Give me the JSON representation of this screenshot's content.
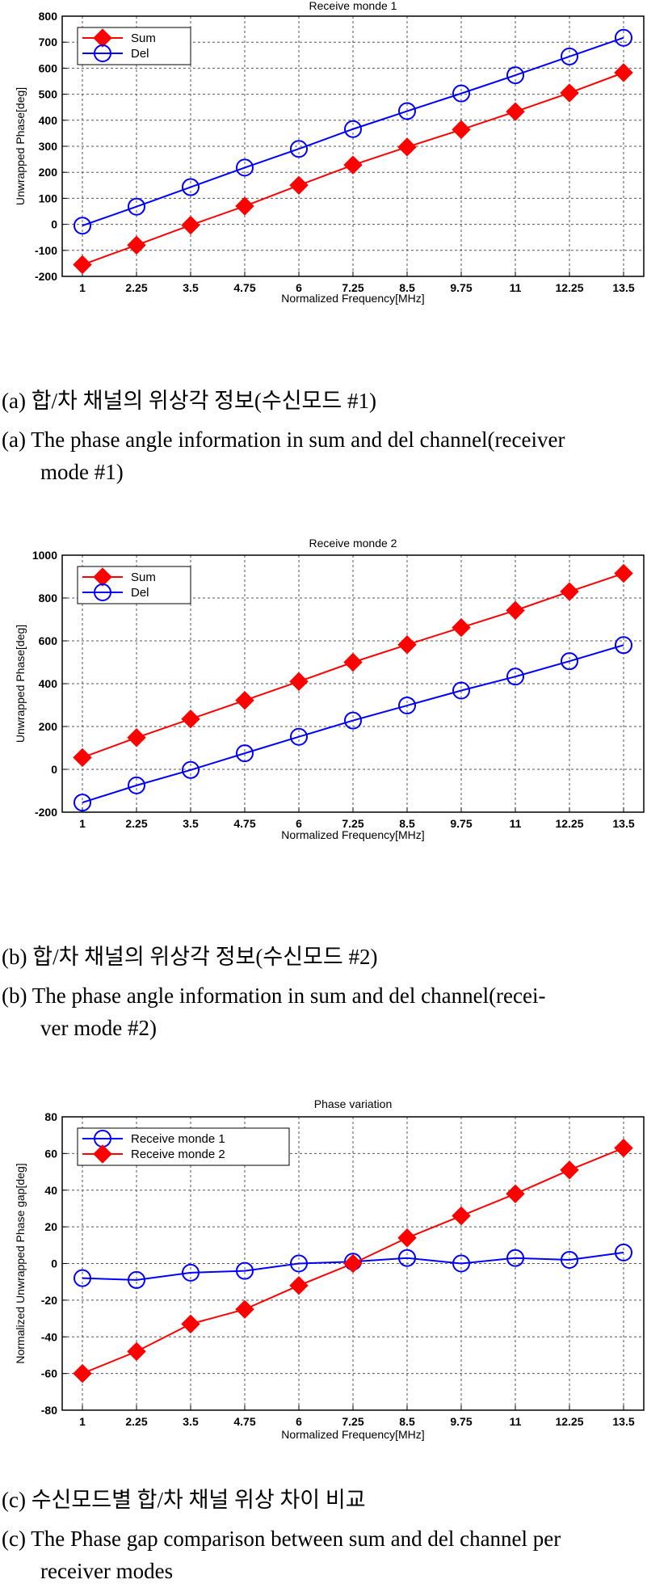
{
  "chart_data": [
    {
      "type": "line",
      "title": "Receive monde 1",
      "xlabel": "Normalized Frequency[MHz]",
      "ylabel": "Unwrapped Phase[deg]",
      "categories": [
        "1",
        "2.25",
        "3.5",
        "4.75",
        "6",
        "7.25",
        "8.5",
        "9.75",
        "11",
        "12.25",
        "13.5"
      ],
      "ylim": [
        -200,
        800
      ],
      "yticks": [
        -200,
        -100,
        0,
        100,
        200,
        300,
        400,
        500,
        600,
        700,
        800
      ],
      "grid": true,
      "legend": "top-left",
      "series": [
        {
          "name": "Sum",
          "color": "#ff0000",
          "marker": "diamond",
          "values": [
            -155,
            -80,
            -3,
            70,
            150,
            228,
            297,
            364,
            433,
            505,
            583
          ]
        },
        {
          "name": "Del",
          "color": "#0000ff",
          "marker": "circle",
          "values": [
            -5,
            68,
            143,
            218,
            290,
            366,
            435,
            503,
            573,
            645,
            717
          ]
        }
      ]
    },
    {
      "type": "line",
      "title": "Receive monde 2",
      "xlabel": "Normalized Frequency[MHz]",
      "ylabel": "Unwrapped Phase[deg]",
      "categories": [
        "1",
        "2.25",
        "3.5",
        "4.75",
        "6",
        "7.25",
        "8.5",
        "9.75",
        "11",
        "12.25",
        "13.5"
      ],
      "ylim": [
        -200,
        1000
      ],
      "yticks": [
        -200,
        0,
        200,
        400,
        600,
        800,
        1000
      ],
      "grid": true,
      "legend": "top-left",
      "series": [
        {
          "name": "Sum",
          "color": "#ff0000",
          "marker": "diamond",
          "values": [
            55,
            148,
            235,
            322,
            410,
            500,
            582,
            662,
            742,
            830,
            915
          ]
        },
        {
          "name": "Del",
          "color": "#0000ff",
          "marker": "circle",
          "values": [
            -155,
            -75,
            -3,
            75,
            152,
            228,
            298,
            368,
            433,
            505,
            580
          ]
        }
      ]
    },
    {
      "type": "line",
      "title": "Phase variation",
      "xlabel": "Normalized Frequency[MHz]",
      "ylabel": "Normalized Unwrapped Phase gap[deg]",
      "categories": [
        "1",
        "2.25",
        "3.5",
        "4.75",
        "6",
        "7.25",
        "8.5",
        "9.75",
        "11",
        "12.25",
        "13.5"
      ],
      "ylim": [
        -80,
        80
      ],
      "yticks": [
        -80,
        -60,
        -40,
        -20,
        0,
        20,
        40,
        60,
        80
      ],
      "grid": true,
      "legend": "top-left",
      "series": [
        {
          "name": "Receive monde 1",
          "color": "#0000ff",
          "marker": "circle",
          "values": [
            -8,
            -9,
            -5,
            -4,
            0,
            1,
            3,
            0,
            3,
            2,
            6
          ]
        },
        {
          "name": "Receive monde 2",
          "color": "#ff0000",
          "marker": "diamond",
          "values": [
            -60,
            -48,
            -33,
            -25,
            -12,
            0,
            14,
            26,
            38,
            51,
            63
          ]
        }
      ]
    }
  ],
  "captions": [
    {
      "kr": "(a) 합/차 채널의 위상각 정보(수신모드 #1)",
      "en1": "(a) The phase angle information in sum and del channel(receiver",
      "en2": "mode #1)"
    },
    {
      "kr": "(b) 합/차 채널의 위상각 정보(수신모드 #2)",
      "en1": "(b) The phase angle information in sum and del channel(recei-",
      "en2": "ver mode #2)"
    },
    {
      "kr": "(c) 수신모드별 합/차 채널 위상 차이 비교",
      "en1": "(c) The Phase gap comparison between sum and del channel per",
      "en2": "receiver modes"
    }
  ]
}
